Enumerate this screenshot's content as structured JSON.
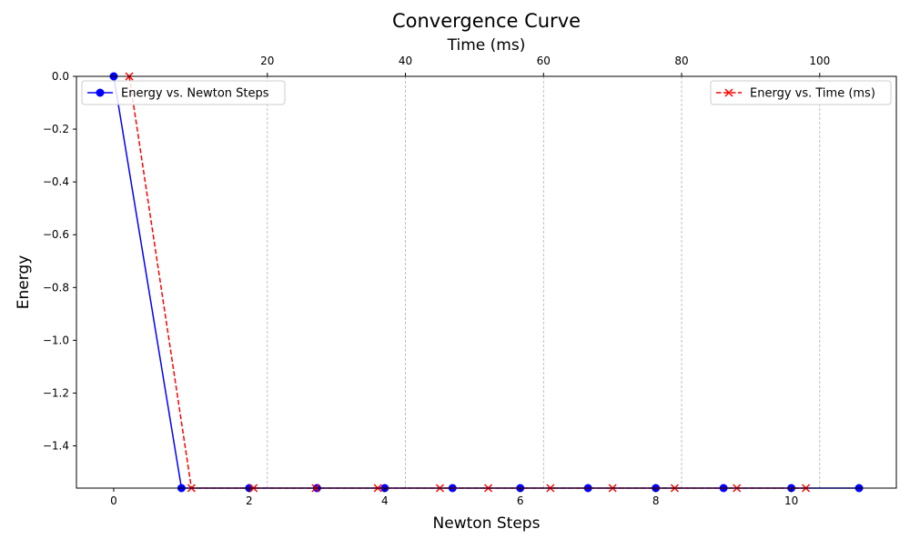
{
  "chart_data": {
    "type": "line",
    "title": "Convergence Curve",
    "xlabel": "Newton Steps",
    "ylabel": "Energy",
    "x2label": "Time (ms)",
    "xlim": [
      -0.55,
      11.55
    ],
    "ylim": [
      -1.56,
      0.0
    ],
    "x2lim": [
      -7.65,
      111.1
    ],
    "x_ticks": [
      0,
      2,
      4,
      6,
      8,
      10
    ],
    "x_tick_labels": [
      "0",
      "2",
      "4",
      "6",
      "8",
      "10"
    ],
    "y_ticks": [
      0.0,
      -0.2,
      -0.4,
      -0.6,
      -0.8,
      -1.0,
      -1.2,
      -1.4
    ],
    "y_tick_labels": [
      "0.0",
      "−0.2",
      "−0.4",
      "−0.6",
      "−0.8",
      "−1.0",
      "−1.2",
      "−1.4"
    ],
    "x2_ticks": [
      20,
      40,
      60,
      80,
      100
    ],
    "x2_tick_labels": [
      "20",
      "40",
      "60",
      "80",
      "100"
    ],
    "grid": "x2-dashed",
    "series": [
      {
        "name": "Energy vs. Newton Steps",
        "axis": "bottom",
        "color": "#0000ff",
        "line_style": "solid",
        "marker": "circle",
        "x": [
          0,
          1,
          2,
          3,
          4,
          5,
          6,
          7,
          8,
          9,
          10,
          11
        ],
        "y": [
          0.0,
          -1.56,
          -1.56,
          -1.56,
          -1.56,
          -1.56,
          -1.56,
          -1.56,
          -1.56,
          -1.56,
          -1.56,
          -1.56
        ]
      },
      {
        "name": "Energy vs. Time (ms)",
        "axis": "top",
        "color": "#ff0000",
        "line_style": "dashed",
        "marker": "x",
        "x": [
          0.0,
          9.0,
          18.0,
          27.0,
          36.0,
          45.0,
          52.0,
          61.0,
          70.0,
          79.0,
          88.0,
          98.0
        ],
        "y": [
          0.0,
          -1.56,
          -1.56,
          -1.56,
          -1.56,
          -1.56,
          -1.56,
          -1.56,
          -1.56,
          -1.56,
          -1.56,
          -1.56
        ]
      }
    ],
    "legends": [
      {
        "placement": "upper-left",
        "entries": [
          "Energy vs. Newton Steps"
        ]
      },
      {
        "placement": "upper-right",
        "entries": [
          "Energy vs. Time (ms)"
        ]
      }
    ]
  }
}
